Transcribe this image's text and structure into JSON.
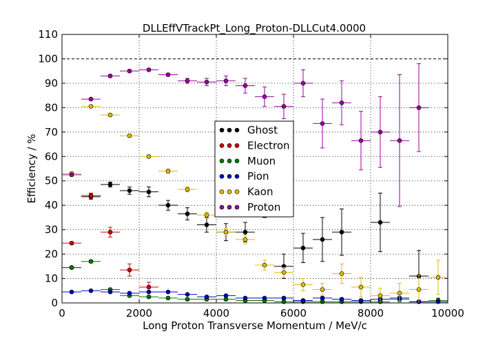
{
  "chart_data": {
    "type": "scatter",
    "title": "DLLEffVTrackPt_Long_Proton-DLLCut4.0000",
    "xlabel": "Long Proton Transverse Momentum / MeV/c",
    "ylabel": "Efficiency / %",
    "xlim": [
      0,
      10000
    ],
    "ylim": [
      0,
      110
    ],
    "xticks": [
      0,
      2000,
      4000,
      6000,
      8000,
      10000
    ],
    "yticks": [
      0,
      10,
      20,
      30,
      40,
      50,
      60,
      70,
      80,
      90,
      100,
      110
    ],
    "grid": true,
    "reference_line_y": 100,
    "legend_position": "center",
    "series": [
      {
        "name": "Ghost",
        "color": "#000000",
        "points": [
          [
            250,
            14.5,
            0.5
          ],
          [
            750,
            43.5,
            1
          ],
          [
            1250,
            48.5,
            1
          ],
          [
            1750,
            46,
            1.5
          ],
          [
            2250,
            45.5,
            2
          ],
          [
            2750,
            40,
            2
          ],
          [
            3250,
            36.5,
            2.5
          ],
          [
            3750,
            32,
            3
          ],
          [
            4250,
            29,
            3.5
          ],
          [
            4750,
            29,
            4
          ],
          [
            5250,
            40,
            5
          ],
          [
            5750,
            15,
            5
          ],
          [
            6250,
            22.5,
            6
          ],
          [
            6750,
            26,
            9
          ],
          [
            7250,
            29,
            9.5
          ],
          [
            8250,
            33,
            12
          ],
          [
            9250,
            11,
            10.5
          ]
        ]
      },
      {
        "name": "Electron",
        "color": "#cc0000",
        "points": [
          [
            250,
            24.5,
            0.5
          ],
          [
            750,
            44,
            1
          ],
          [
            1250,
            29,
            2
          ],
          [
            1750,
            13.5,
            2.5
          ],
          [
            2250,
            6.5,
            2
          ]
        ]
      },
      {
        "name": "Muon",
        "color": "#007700",
        "points": [
          [
            250,
            14.5,
            0.5
          ],
          [
            750,
            17,
            0.5
          ],
          [
            1250,
            5.5,
            0.5
          ],
          [
            1750,
            3,
            0.5
          ],
          [
            2250,
            2.5,
            0.5
          ],
          [
            2750,
            2,
            0.5
          ],
          [
            3250,
            1.5,
            0.5
          ],
          [
            3750,
            1.5,
            0.5
          ],
          [
            4250,
            1.5,
            0.5
          ],
          [
            4750,
            1,
            0.5
          ],
          [
            5250,
            1,
            0.5
          ],
          [
            5750,
            0.5,
            0.5
          ],
          [
            6250,
            0.5,
            0.5
          ],
          [
            6750,
            0.5,
            0.5
          ],
          [
            7250,
            0.5,
            0.5
          ],
          [
            7750,
            0.5,
            0.5
          ],
          [
            8250,
            0.5,
            0.5
          ],
          [
            8750,
            1.5,
            1
          ],
          [
            9250,
            0.5,
            0.5
          ],
          [
            9750,
            1,
            1
          ]
        ]
      },
      {
        "name": "Pion",
        "color": "#0000bb",
        "points": [
          [
            250,
            4.5,
            0.3
          ],
          [
            750,
            5,
            0.3
          ],
          [
            1250,
            4.5,
            0.3
          ],
          [
            1750,
            4,
            0.3
          ],
          [
            2250,
            4.5,
            0.3
          ],
          [
            2750,
            4.5,
            0.3
          ],
          [
            3250,
            3.5,
            0.3
          ],
          [
            3750,
            2.5,
            0.3
          ],
          [
            4250,
            3,
            0.3
          ],
          [
            4750,
            2,
            0.3
          ],
          [
            5250,
            2,
            0.3
          ],
          [
            5750,
            2,
            0.5
          ],
          [
            6250,
            1,
            0.5
          ],
          [
            6750,
            2,
            0.5
          ],
          [
            7250,
            1.5,
            0.5
          ],
          [
            7750,
            1,
            0.5
          ],
          [
            8250,
            1.5,
            0.5
          ],
          [
            8750,
            2,
            0.5
          ],
          [
            9250,
            0.5,
            0.5
          ],
          [
            9750,
            0.5,
            0.5
          ]
        ]
      },
      {
        "name": "Kaon",
        "color": "#ddbb00",
        "points": [
          [
            250,
            53,
            0.5
          ],
          [
            750,
            80.5,
            0.5
          ],
          [
            1250,
            77,
            0.5
          ],
          [
            1750,
            68.5,
            0.5
          ],
          [
            2250,
            60,
            0.5
          ],
          [
            2750,
            54,
            0.8
          ],
          [
            3250,
            46.5,
            1
          ],
          [
            3750,
            36,
            1.2
          ],
          [
            4250,
            29,
            1.5
          ],
          [
            4750,
            26,
            1.8
          ],
          [
            5250,
            15.5,
            2
          ],
          [
            5750,
            12.5,
            2
          ],
          [
            6250,
            7.5,
            2.5
          ],
          [
            6750,
            5.5,
            2.5
          ],
          [
            7250,
            12,
            4
          ],
          [
            7750,
            6.5,
            4
          ],
          [
            8250,
            3,
            3
          ],
          [
            8750,
            4,
            4
          ],
          [
            9250,
            5.5,
            6
          ],
          [
            9750,
            10.5,
            7
          ]
        ]
      },
      {
        "name": "Proton",
        "color": "#990099",
        "points": [
          [
            250,
            52.5,
            0.5
          ],
          [
            750,
            83.5,
            0.5
          ],
          [
            1250,
            93,
            0.5
          ],
          [
            1750,
            95,
            0.5
          ],
          [
            2250,
            95.5,
            0.5
          ],
          [
            2750,
            93.5,
            0.5
          ],
          [
            3250,
            91,
            1
          ],
          [
            3750,
            90.5,
            1.5
          ],
          [
            4250,
            91,
            2
          ],
          [
            4750,
            89,
            3
          ],
          [
            5250,
            84.5,
            4
          ],
          [
            5750,
            80.5,
            5
          ],
          [
            6250,
            90,
            5.5
          ],
          [
            6750,
            73.5,
            10
          ],
          [
            7250,
            82,
            9
          ],
          [
            7750,
            66.5,
            12
          ],
          [
            8250,
            70,
            14.5
          ],
          [
            8750,
            66.5,
            27
          ],
          [
            9250,
            80,
            18
          ]
        ]
      }
    ]
  }
}
